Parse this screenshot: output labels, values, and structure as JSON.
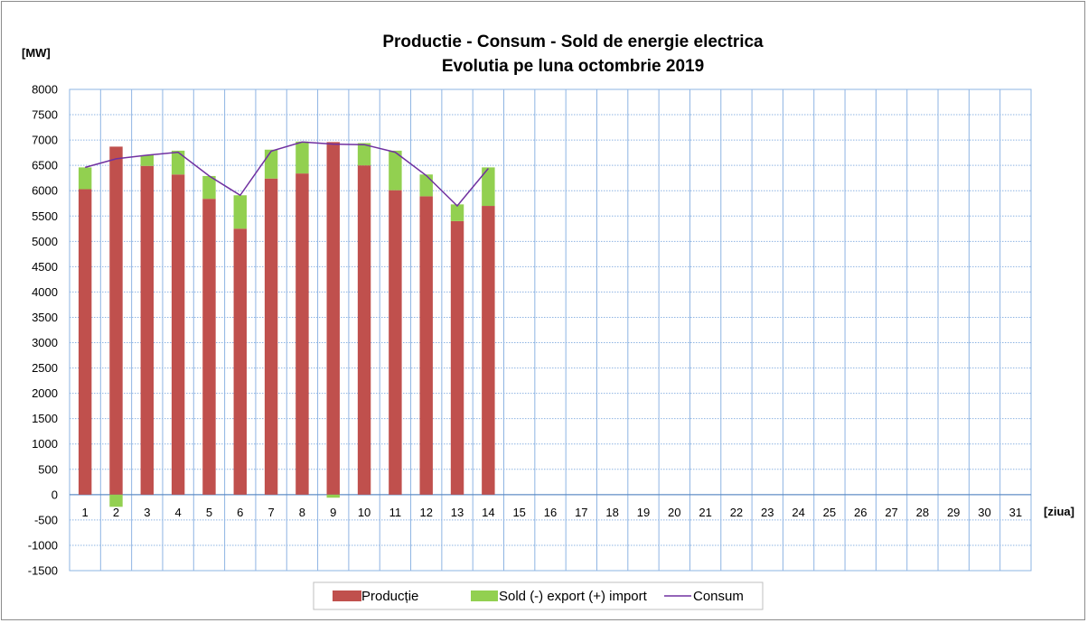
{
  "chart_data": {
    "type": "bar",
    "title_line1": "Productie - Consum - Sold de energie electrica",
    "title_line2": "Evolutia pe luna octombrie 2019",
    "ylabel": "[MW]",
    "xlabel": "[ziua]",
    "ylim": [
      -1500,
      8000
    ],
    "ytick_step": 500,
    "grid": true,
    "legend_position": "bottom",
    "categories": [
      "1",
      "2",
      "3",
      "4",
      "5",
      "6",
      "7",
      "8",
      "9",
      "10",
      "11",
      "12",
      "13",
      "14",
      "15",
      "16",
      "17",
      "18",
      "19",
      "20",
      "21",
      "22",
      "23",
      "24",
      "25",
      "26",
      "27",
      "28",
      "29",
      "30",
      "31"
    ],
    "series": [
      {
        "name": "Producție",
        "kind": "stacked-bar",
        "color": "#c0504d",
        "values": [
          6030,
          6870,
          6490,
          6320,
          5840,
          5250,
          6240,
          6340,
          6960,
          6500,
          6010,
          5890,
          5400,
          5700,
          null,
          null,
          null,
          null,
          null,
          null,
          null,
          null,
          null,
          null,
          null,
          null,
          null,
          null,
          null,
          null,
          null
        ]
      },
      {
        "name": "Sold (-) export (+) import",
        "kind": "stacked-bar",
        "color": "#92d050",
        "values": [
          430,
          -240,
          210,
          470,
          450,
          660,
          570,
          630,
          -60,
          440,
          780,
          430,
          330,
          760,
          null,
          null,
          null,
          null,
          null,
          null,
          null,
          null,
          null,
          null,
          null,
          null,
          null,
          null,
          null,
          null,
          null
        ]
      },
      {
        "name": "Consum",
        "kind": "line",
        "color": "#7030a0",
        "values": [
          6460,
          6630,
          6700,
          6760,
          6290,
          5910,
          6780,
          6960,
          6920,
          6910,
          6760,
          6300,
          5700,
          6440,
          null,
          null,
          null,
          null,
          null,
          null,
          null,
          null,
          null,
          null,
          null,
          null,
          null,
          null,
          null,
          null,
          null
        ]
      }
    ]
  }
}
